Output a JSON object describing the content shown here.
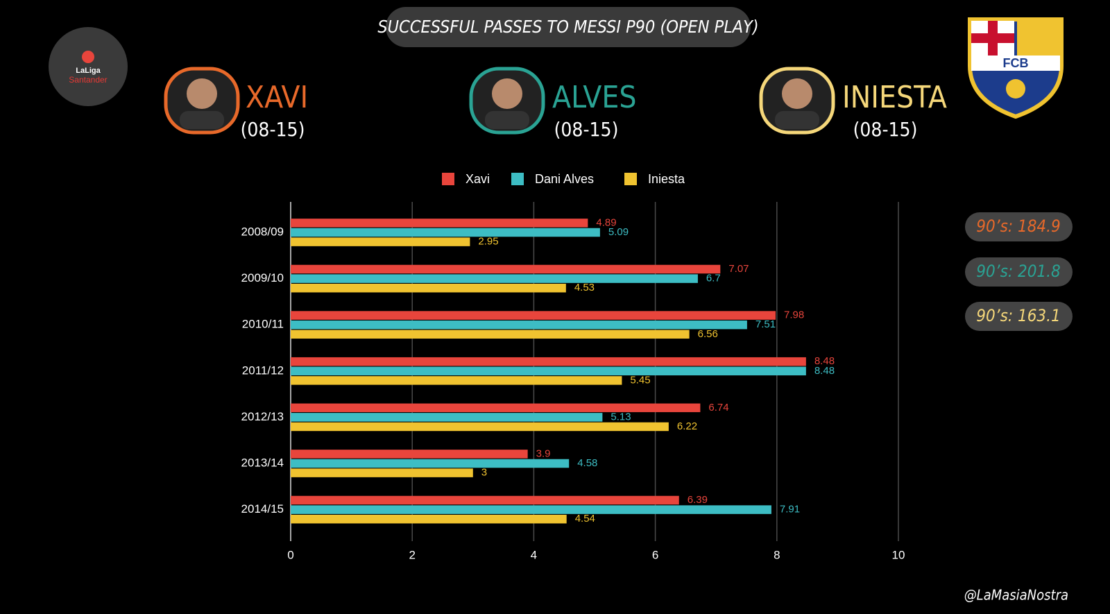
{
  "chart_data": {
    "type": "hbar",
    "title": "SUCCESSFUL PASSES TO MESSI P90 (OPEN PLAY)",
    "categories": [
      "2008/09",
      "2009/10",
      "2010/11",
      "2011/12",
      "2012/13",
      "2013/14",
      "2014/15"
    ],
    "series": [
      {
        "name": "Xavi",
        "color": "#e8453c",
        "values": [
          4.89,
          7.07,
          7.98,
          8.48,
          6.74,
          3.9,
          6.39
        ]
      },
      {
        "name": "Dani Alves",
        "color": "#3dbdc4",
        "values": [
          5.09,
          6.7,
          7.51,
          8.48,
          5.13,
          4.58,
          7.91
        ]
      },
      {
        "name": "Iniesta",
        "color": "#f0c330",
        "values": [
          2.95,
          4.53,
          6.56,
          5.45,
          6.22,
          3,
          4.54
        ]
      }
    ],
    "xlim": [
      0,
      10
    ],
    "xticks": [
      0,
      2,
      4,
      6,
      8,
      10
    ],
    "grid": true
  },
  "header": {
    "players": [
      {
        "name": "XAVI",
        "period": "(08-15)",
        "nineties": "90’s: 184.9",
        "color": "#e8692a"
      },
      {
        "name": "ALVES",
        "period": "(08-15)",
        "nineties": "90’s: 201.8",
        "color": "#2aa394"
      },
      {
        "name": "INIESTA",
        "period": "(08-15)",
        "nineties": "90’s: 163.1",
        "color": "#f5d77a"
      }
    ],
    "league": "LaLiga",
    "sponsor": "Santander",
    "crest": "FCB",
    "watermark": "@LaMasiaNostra"
  }
}
